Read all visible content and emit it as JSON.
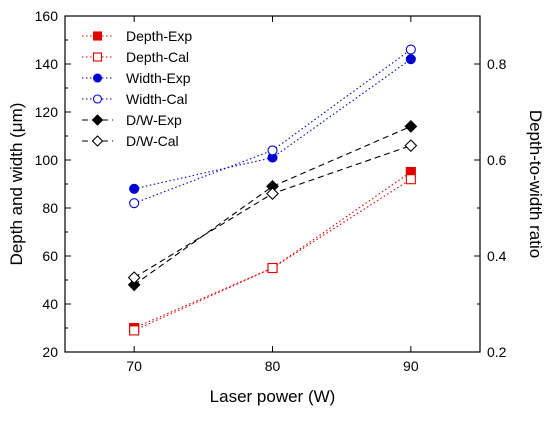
{
  "chart_data": {
    "type": "line",
    "x": [
      70,
      80,
      90
    ],
    "xlabel": "Laser power (W)",
    "ylabel_left": "Depth and width (μm)",
    "ylabel_right": "Depth-to-width ratio",
    "xlim": [
      65,
      95
    ],
    "ylim_left": [
      20,
      160
    ],
    "ylim_right": [
      0.2,
      0.9
    ],
    "x_ticks": [
      70,
      80,
      90
    ],
    "y_left_ticks": [
      20,
      40,
      60,
      80,
      100,
      120,
      140,
      160
    ],
    "y_right_ticks": [
      0.2,
      0.4,
      0.6,
      0.8
    ],
    "grid": false,
    "legend_position": "top-left",
    "series": [
      {
        "name": "Depth-Exp",
        "axis": "left",
        "values": [
          30,
          55,
          95
        ],
        "color": "#e00000",
        "marker": "square-filled",
        "line": "dotted"
      },
      {
        "name": "Depth-Cal",
        "axis": "left",
        "values": [
          29,
          55,
          92
        ],
        "color": "#e00000",
        "marker": "square-open",
        "line": "dotted"
      },
      {
        "name": "Width-Exp",
        "axis": "left",
        "values": [
          88,
          101,
          142
        ],
        "color": "#0000d0",
        "marker": "circle-filled",
        "line": "dotted"
      },
      {
        "name": "Width-Cal",
        "axis": "left",
        "values": [
          82,
          104,
          146
        ],
        "color": "#0000d0",
        "marker": "circle-open",
        "line": "dotted"
      },
      {
        "name": "D/W-Exp",
        "axis": "right",
        "values": [
          0.34,
          0.545,
          0.67
        ],
        "color": "#000000",
        "marker": "diamond-filled",
        "line": "dashed"
      },
      {
        "name": "D/W-Cal",
        "axis": "right",
        "values": [
          0.355,
          0.53,
          0.63
        ],
        "color": "#000000",
        "marker": "diamond-open",
        "line": "dashed"
      }
    ]
  }
}
